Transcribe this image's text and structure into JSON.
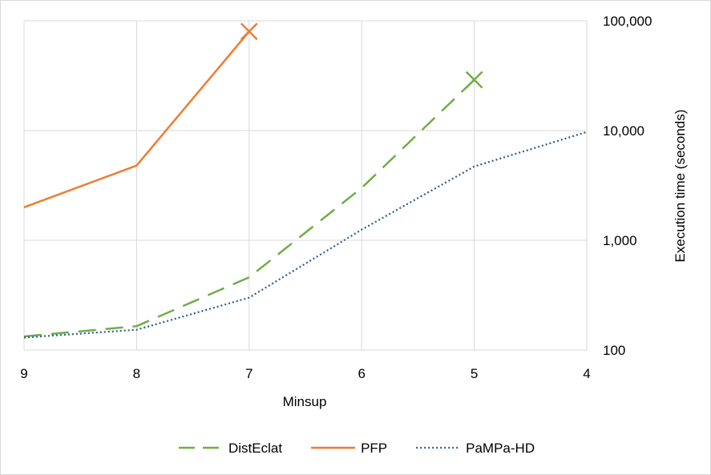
{
  "chart_data": {
    "type": "line",
    "x": [
      9,
      8,
      7,
      6,
      5,
      4
    ],
    "xlabel": "Minsup",
    "ylabel": "Execution time (seconds)",
    "xlim": [
      9,
      4
    ],
    "ylim": [
      100,
      100000
    ],
    "yscale": "log",
    "x_ticks": [
      "9",
      "8",
      "7",
      "6",
      "5",
      "4"
    ],
    "y_ticks": [
      "100",
      "1,000",
      "10,000",
      "100,000"
    ],
    "y_axis_side": "right",
    "grid": "vertical",
    "legend_position": "bottom",
    "series": [
      {
        "name": "DistEclat",
        "values": [
          133,
          165,
          460,
          3000,
          29000,
          null
        ],
        "color": "#70ad47",
        "style": "dashed",
        "end_marker": "x"
      },
      {
        "name": "PFP",
        "values": [
          2000,
          4800,
          80000,
          null,
          null,
          null
        ],
        "color": "#ed7d31",
        "style": "solid",
        "end_marker": "x"
      },
      {
        "name": "PaMPa-HD",
        "values": [
          130,
          153,
          300,
          1250,
          4700,
          9700
        ],
        "color": "#2e5f8a",
        "style": "dotted",
        "end_marker": "none"
      }
    ]
  }
}
